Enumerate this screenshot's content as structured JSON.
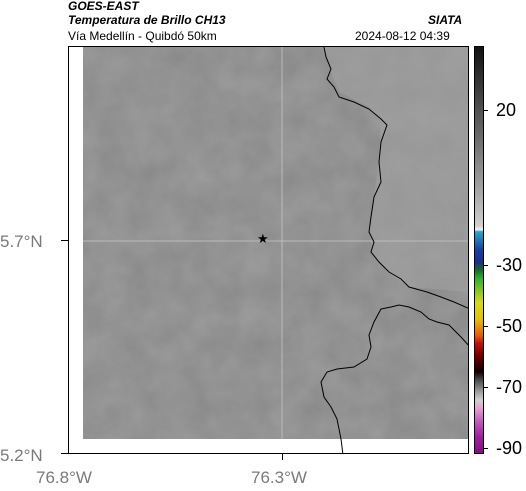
{
  "header": {
    "satellite": "GOES-EAST",
    "product": "Temperatura de Brillo CH13",
    "region": "Vía Medellín - Quibdó 50km",
    "org": "SIATA",
    "timestamp": "2024-08-12 04:39"
  },
  "axes": {
    "lat_labels": [
      "5.7°N",
      "5.2°N"
    ],
    "lon_labels": [
      "76.8°W",
      "76.3°W"
    ]
  },
  "colorbar": {
    "tick_labels": [
      "20",
      "-30",
      "-50",
      "-70",
      "-90"
    ]
  },
  "marker": {
    "symbol": "★",
    "color": "#000000"
  },
  "map_colors": {
    "cloud_gray": "#8a8a8a",
    "border": "#000000",
    "grid": "#bbbbbb"
  }
}
